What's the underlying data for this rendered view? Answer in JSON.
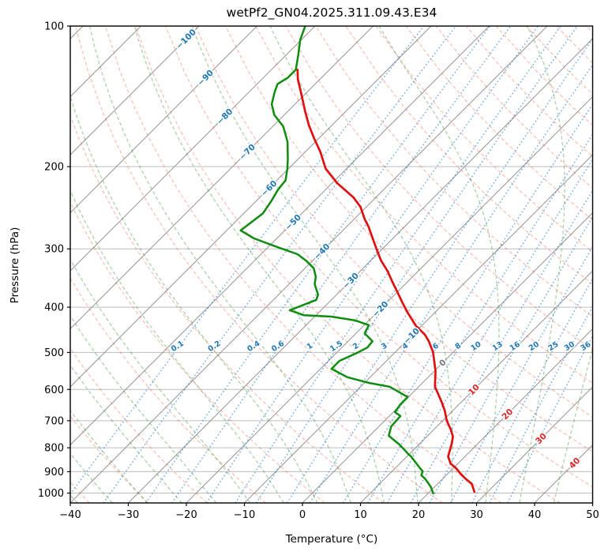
{
  "title": "wetPf2_GN04.2025.311.09.43.E34",
  "axes": {
    "x": {
      "label": "Temperature (°C)",
      "tick_values": [
        -40,
        -30,
        -20,
        -10,
        0,
        10,
        20,
        30,
        40,
        50
      ],
      "tick_labels": [
        "−40",
        "−30",
        "−20",
        "−10",
        "0",
        "10",
        "20",
        "30",
        "40",
        "50"
      ]
    },
    "y": {
      "label": "Pressure (hPa)",
      "scale": "log",
      "tick_values": [
        100,
        200,
        300,
        400,
        500,
        600,
        700,
        800,
        900,
        1000
      ],
      "tick_labels": [
        "100",
        "200",
        "300",
        "400",
        "500",
        "600",
        "700",
        "800",
        "900",
        "1000"
      ]
    }
  },
  "chart_data": {
    "type": "line",
    "variant": "skew-t-log-p",
    "skew_deg": 45,
    "xlim": [
      -40,
      50
    ],
    "ylim": [
      1050,
      100
    ],
    "grid": true,
    "series": [
      {
        "name": "temperature",
        "color": "#e01010",
        "points_p_t": [
          [
            124,
            -75.5
          ],
          [
            130,
            -73.8
          ],
          [
            140,
            -70.6
          ],
          [
            152,
            -67.1
          ],
          [
            163,
            -64.0
          ],
          [
            174,
            -60.8
          ],
          [
            186,
            -57.4
          ],
          [
            202,
            -53.6
          ],
          [
            217,
            -49.1
          ],
          [
            233,
            -43.8
          ],
          [
            244,
            -41.0
          ],
          [
            259,
            -38.2
          ],
          [
            269,
            -36.2
          ],
          [
            286,
            -33.3
          ],
          [
            302,
            -30.7
          ],
          [
            318,
            -28.2
          ],
          [
            334,
            -25.4
          ],
          [
            353,
            -22.6
          ],
          [
            371,
            -20.0
          ],
          [
            391,
            -17.3
          ],
          [
            412,
            -14.5
          ],
          [
            439,
            -10.9
          ],
          [
            458,
            -7.9
          ],
          [
            473,
            -6.1
          ],
          [
            499,
            -3.5
          ],
          [
            548,
            0.2
          ],
          [
            592,
            2.8
          ],
          [
            616,
            4.8
          ],
          [
            641,
            6.8
          ],
          [
            666,
            8.6
          ],
          [
            700,
            10.7
          ],
          [
            728,
            12.7
          ],
          [
            757,
            14.5
          ],
          [
            784,
            15.5
          ],
          [
            835,
            17.1
          ],
          [
            864,
            18.7
          ],
          [
            885,
            20.5
          ],
          [
            909,
            22.2
          ],
          [
            934,
            24.1
          ],
          [
            956,
            25.9
          ],
          [
            994,
            27.7
          ]
        ]
      },
      {
        "name": "dewpoint",
        "color": "#0d8c0d",
        "points_p_t": [
          [
            100,
            -81.7
          ],
          [
            107,
            -80.2
          ],
          [
            115,
            -78.0
          ],
          [
            124,
            -75.8
          ],
          [
            129,
            -75.8
          ],
          [
            133,
            -76.5
          ],
          [
            139,
            -75.5
          ],
          [
            147,
            -74.0
          ],
          [
            155,
            -71.7
          ],
          [
            164,
            -68.2
          ],
          [
            177,
            -64.8
          ],
          [
            192,
            -61.9
          ],
          [
            202,
            -60.2
          ],
          [
            214,
            -58.5
          ],
          [
            224,
            -58.2
          ],
          [
            237,
            -57.4
          ],
          [
            252,
            -56.7
          ],
          [
            274,
            -57.6
          ],
          [
            285,
            -53.9
          ],
          [
            297,
            -48.6
          ],
          [
            308,
            -43.7
          ],
          [
            318,
            -41.1
          ],
          [
            330,
            -38.5
          ],
          [
            344,
            -36.7
          ],
          [
            357,
            -35.6
          ],
          [
            376,
            -33.2
          ],
          [
            386,
            -32.6
          ],
          [
            406,
            -35.4
          ],
          [
            416,
            -32.1
          ],
          [
            419,
            -27.1
          ],
          [
            427,
            -22.3
          ],
          [
            437,
            -19.2
          ],
          [
            455,
            -18.5
          ],
          [
            473,
            -15.8
          ],
          [
            488,
            -15.6
          ],
          [
            503,
            -16.6
          ],
          [
            521,
            -18.1
          ],
          [
            542,
            -18.1
          ],
          [
            565,
            -13.9
          ],
          [
            581,
            -9.2
          ],
          [
            592,
            -5.0
          ],
          [
            623,
            -0.1
          ],
          [
            646,
            -0.1
          ],
          [
            671,
            0.3
          ],
          [
            684,
            1.9
          ],
          [
            720,
            2.1
          ],
          [
            754,
            3.3
          ],
          [
            787,
            6.6
          ],
          [
            809,
            8.5
          ],
          [
            825,
            9.8
          ],
          [
            835,
            10.7
          ],
          [
            864,
            12.8
          ],
          [
            885,
            14.3
          ],
          [
            899,
            15.3
          ],
          [
            916,
            15.7
          ],
          [
            934,
            17.1
          ],
          [
            953,
            18.3
          ],
          [
            971,
            19.4
          ],
          [
            1002,
            20.9
          ]
        ]
      }
    ],
    "isotherm_step_c": 10,
    "isotherm_labels": [
      {
        "t": -100,
        "y": 52,
        "tone": "cold"
      },
      {
        "t": -90,
        "y": 101,
        "tone": "cold"
      },
      {
        "t": -80,
        "y": 150,
        "tone": "cold"
      },
      {
        "t": -70,
        "y": 195,
        "tone": "cold"
      },
      {
        "t": -60,
        "y": 241,
        "tone": "cold"
      },
      {
        "t": -50,
        "y": 284,
        "tone": "cold"
      },
      {
        "t": -40,
        "y": 321,
        "tone": "cold"
      },
      {
        "t": -30,
        "y": 358,
        "tone": "cold"
      },
      {
        "t": -20,
        "y": 394,
        "tone": "cold"
      },
      {
        "t": -10,
        "y": 428,
        "tone": "cold"
      },
      {
        "t": 0,
        "y": 462,
        "tone": "zero"
      },
      {
        "t": 10,
        "y": 496,
        "tone": "warm"
      },
      {
        "t": 20,
        "y": 527,
        "tone": "warm"
      },
      {
        "t": 30,
        "y": 558,
        "tone": "warm"
      },
      {
        "t": 40,
        "y": 589,
        "tone": "warm"
      }
    ],
    "mixing_ratio_lines_g_kg": [
      0.1,
      0.2,
      0.4,
      0.6,
      1,
      1.5,
      2,
      3,
      4,
      6,
      8,
      10,
      13,
      16,
      20,
      25,
      30,
      36
    ],
    "dry_adiabats_theta_c": {
      "start": -40,
      "end": 190,
      "step": 10
    },
    "moist_adiabats_t0_c": {
      "start": -42,
      "end": 42,
      "step": 6
    },
    "colors": {
      "gridline": "#bdbdbd",
      "isotherm": "#969696",
      "dry_adiabat": "rgba(244,92,66,0.38)",
      "moist_adiabat": "rgba(24,128,24,0.36)",
      "mixing_ratio": "rgba(28,118,212,0.62)",
      "label_cold": "#1f77b4",
      "label_zero": "#777777",
      "label_warm": "#d62728",
      "frame": "#000000"
    }
  }
}
